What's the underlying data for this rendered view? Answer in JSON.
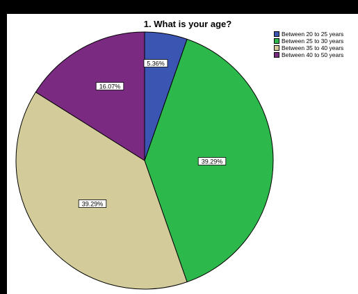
{
  "chart_data": {
    "type": "pie",
    "title": "1. What is your age?",
    "categories": [
      "Between 20 to 25 years",
      "Between 25 to 30 years",
      "Between 35 to 40 years",
      "Between 40 to 50 years"
    ],
    "values": [
      5.36,
      39.29,
      39.29,
      16.07
    ],
    "labels": [
      "5.36%",
      "39.29%",
      "39.29%",
      "16.07%"
    ],
    "colors": [
      "#3b55b2",
      "#2db84b",
      "#d3cc9a",
      "#7b2a82"
    ],
    "start_angle_deg": 0,
    "direction": "clockwise",
    "legend_position": "top-right"
  }
}
